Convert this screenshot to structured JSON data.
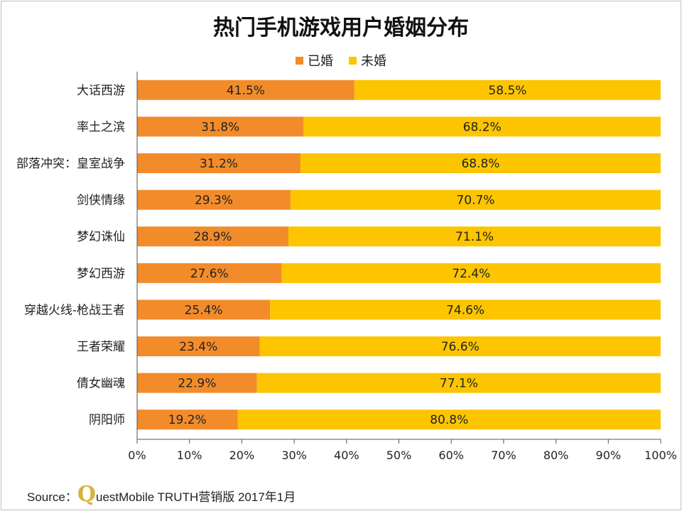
{
  "title": "热门手机游戏用户婚姻分布",
  "source": {
    "prefix": "Source：",
    "q": "Q",
    "rest": "uestMobile TRUTH营销版 2017年1月"
  },
  "colors": {
    "married": "#f28c2b",
    "unmarried": "#fcc500",
    "axis": "#555555",
    "grid": "#d9d9d9"
  },
  "chart_data": {
    "type": "bar",
    "stacked": true,
    "orientation": "horizontal",
    "title": "热门手机游戏用户婚姻分布",
    "categories": [
      "大话西游",
      "率土之滨",
      "部落冲突：皇室战争",
      "剑侠情缘",
      "梦幻诛仙",
      "梦幻西游",
      "穿越火线-枪战王者",
      "王者荣耀",
      "倩女幽魂",
      "阴阳师"
    ],
    "series": [
      {
        "name": "已婚",
        "values": [
          41.5,
          31.8,
          31.2,
          29.3,
          28.9,
          27.6,
          25.4,
          23.4,
          22.9,
          19.2
        ]
      },
      {
        "name": "未婚",
        "values": [
          58.5,
          68.2,
          68.8,
          70.7,
          71.1,
          72.4,
          74.6,
          76.6,
          77.1,
          80.8
        ]
      }
    ],
    "xlim": [
      0,
      100
    ],
    "x_ticks": [
      "0%",
      "10%",
      "20%",
      "30%",
      "40%",
      "50%",
      "60%",
      "70%",
      "80%",
      "90%",
      "100%"
    ],
    "legend_position": "top-center",
    "grid": false,
    "value_format": "percent_one_decimal"
  }
}
